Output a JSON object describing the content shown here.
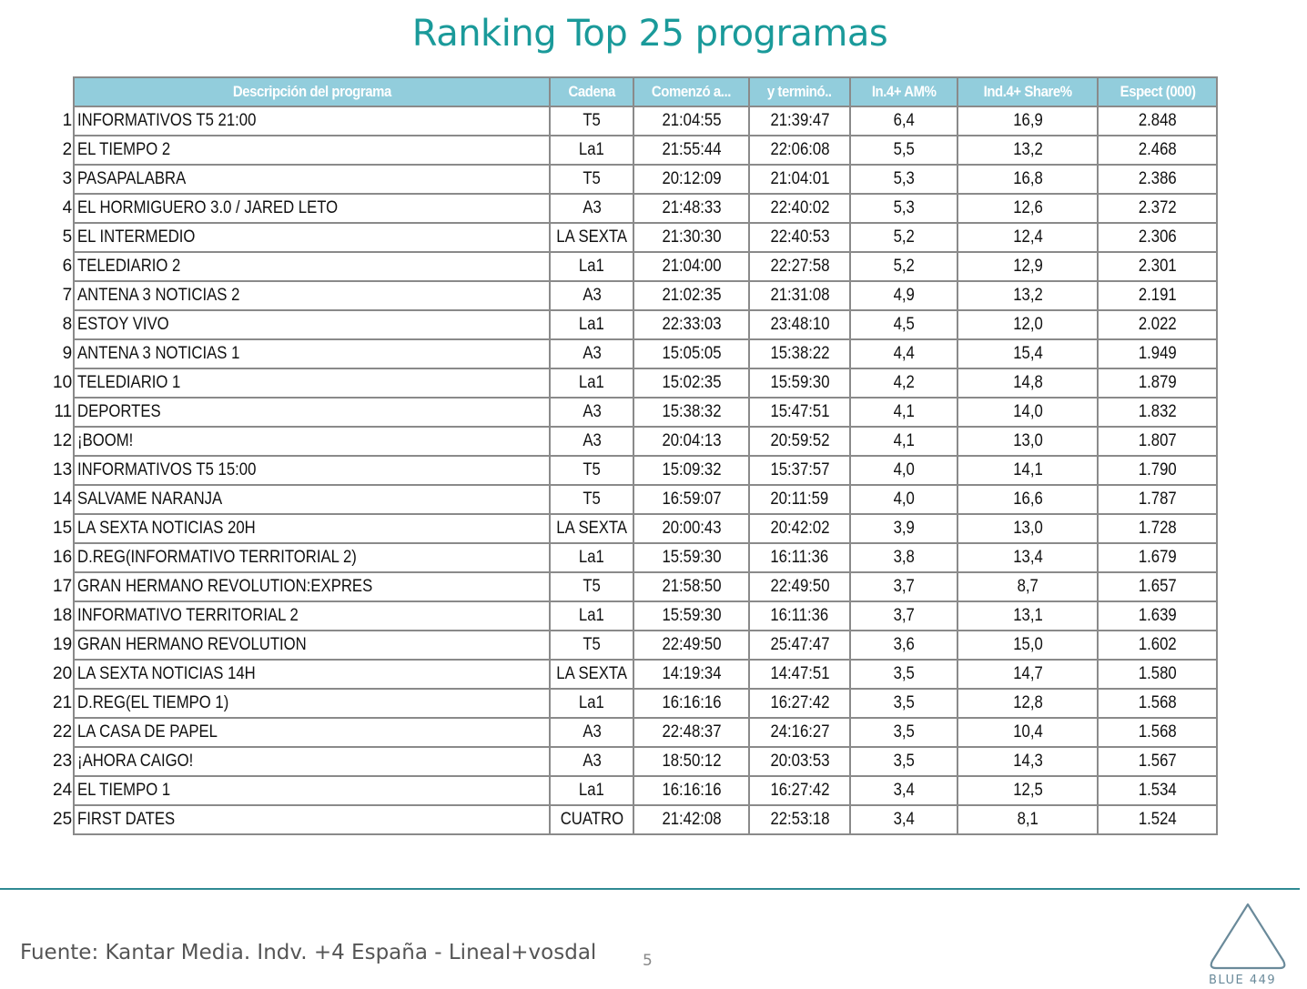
{
  "title": "Ranking Top 25 programas",
  "table": {
    "headers": [
      "Descripción del programa",
      "Cadena",
      "Comenzó a...",
      "y terminó..",
      "In.4+ AM%",
      "Ind.4+ Share%",
      "Espect (000)"
    ],
    "rows": [
      {
        "rank": "1",
        "desc": "INFORMATIVOS T5 21:00",
        "cadena": "T5",
        "start": "21:04:55",
        "end": "21:39:47",
        "am": "6,4",
        "share": "16,9",
        "espect": "2.848"
      },
      {
        "rank": "2",
        "desc": "EL TIEMPO 2",
        "cadena": "La1",
        "start": "21:55:44",
        "end": "22:06:08",
        "am": "5,5",
        "share": "13,2",
        "espect": "2.468"
      },
      {
        "rank": "3",
        "desc": "PASAPALABRA",
        "cadena": "T5",
        "start": "20:12:09",
        "end": "21:04:01",
        "am": "5,3",
        "share": "16,8",
        "espect": "2.386"
      },
      {
        "rank": "4",
        "desc": "EL HORMIGUERO 3.0 / JARED LETO",
        "cadena": "A3",
        "start": "21:48:33",
        "end": "22:40:02",
        "am": "5,3",
        "share": "12,6",
        "espect": "2.372"
      },
      {
        "rank": "5",
        "desc": "EL INTERMEDIO",
        "cadena": "LA SEXTA",
        "start": "21:30:30",
        "end": "22:40:53",
        "am": "5,2",
        "share": "12,4",
        "espect": "2.306"
      },
      {
        "rank": "6",
        "desc": "TELEDIARIO 2",
        "cadena": "La1",
        "start": "21:04:00",
        "end": "22:27:58",
        "am": "5,2",
        "share": "12,9",
        "espect": "2.301"
      },
      {
        "rank": "7",
        "desc": "ANTENA 3 NOTICIAS 2",
        "cadena": "A3",
        "start": "21:02:35",
        "end": "21:31:08",
        "am": "4,9",
        "share": "13,2",
        "espect": "2.191"
      },
      {
        "rank": "8",
        "desc": "ESTOY VIVO",
        "cadena": "La1",
        "start": "22:33:03",
        "end": "23:48:10",
        "am": "4,5",
        "share": "12,0",
        "espect": "2.022"
      },
      {
        "rank": "9",
        "desc": "ANTENA 3 NOTICIAS 1",
        "cadena": "A3",
        "start": "15:05:05",
        "end": "15:38:22",
        "am": "4,4",
        "share": "15,4",
        "espect": "1.949"
      },
      {
        "rank": "10",
        "desc": "TELEDIARIO 1",
        "cadena": "La1",
        "start": "15:02:35",
        "end": "15:59:30",
        "am": "4,2",
        "share": "14,8",
        "espect": "1.879"
      },
      {
        "rank": "11",
        "desc": "DEPORTES",
        "cadena": "A3",
        "start": "15:38:32",
        "end": "15:47:51",
        "am": "4,1",
        "share": "14,0",
        "espect": "1.832"
      },
      {
        "rank": "12",
        "desc": "¡BOOM!",
        "cadena": "A3",
        "start": "20:04:13",
        "end": "20:59:52",
        "am": "4,1",
        "share": "13,0",
        "espect": "1.807"
      },
      {
        "rank": "13",
        "desc": "INFORMATIVOS T5 15:00",
        "cadena": "T5",
        "start": "15:09:32",
        "end": "15:37:57",
        "am": "4,0",
        "share": "14,1",
        "espect": "1.790"
      },
      {
        "rank": "14",
        "desc": "SALVAME NARANJA",
        "cadena": "T5",
        "start": "16:59:07",
        "end": "20:11:59",
        "am": "4,0",
        "share": "16,6",
        "espect": "1.787"
      },
      {
        "rank": "15",
        "desc": "LA SEXTA NOTICIAS 20H",
        "cadena": "LA SEXTA",
        "start": "20:00:43",
        "end": "20:42:02",
        "am": "3,9",
        "share": "13,0",
        "espect": "1.728"
      },
      {
        "rank": "16",
        "desc": "D.REG(INFORMATIVO TERRITORIAL 2)",
        "cadena": "La1",
        "start": "15:59:30",
        "end": "16:11:36",
        "am": "3,8",
        "share": "13,4",
        "espect": "1.679"
      },
      {
        "rank": "17",
        "desc": "GRAN HERMANO REVOLUTION:EXPRES",
        "cadena": "T5",
        "start": "21:58:50",
        "end": "22:49:50",
        "am": "3,7",
        "share": "8,7",
        "espect": "1.657"
      },
      {
        "rank": "18",
        "desc": "INFORMATIVO TERRITORIAL 2",
        "cadena": "La1",
        "start": "15:59:30",
        "end": "16:11:36",
        "am": "3,7",
        "share": "13,1",
        "espect": "1.639"
      },
      {
        "rank": "19",
        "desc": "GRAN HERMANO REVOLUTION",
        "cadena": "T5",
        "start": "22:49:50",
        "end": "25:47:47",
        "am": "3,6",
        "share": "15,0",
        "espect": "1.602"
      },
      {
        "rank": "20",
        "desc": "LA SEXTA NOTICIAS 14H",
        "cadena": "LA SEXTA",
        "start": "14:19:34",
        "end": "14:47:51",
        "am": "3,5",
        "share": "14,7",
        "espect": "1.580"
      },
      {
        "rank": "21",
        "desc": "D.REG(EL TIEMPO 1)",
        "cadena": "La1",
        "start": "16:16:16",
        "end": "16:27:42",
        "am": "3,5",
        "share": "12,8",
        "espect": "1.568"
      },
      {
        "rank": "22",
        "desc": "LA CASA DE PAPEL",
        "cadena": "A3",
        "start": "22:48:37",
        "end": "24:16:27",
        "am": "3,5",
        "share": "10,4",
        "espect": "1.568"
      },
      {
        "rank": "23",
        "desc": "¡AHORA CAIGO!",
        "cadena": "A3",
        "start": "18:50:12",
        "end": "20:03:53",
        "am": "3,5",
        "share": "14,3",
        "espect": "1.567"
      },
      {
        "rank": "24",
        "desc": "EL TIEMPO 1",
        "cadena": "La1",
        "start": "16:16:16",
        "end": "16:27:42",
        "am": "3,4",
        "share": "12,5",
        "espect": "1.534"
      },
      {
        "rank": "25",
        "desc": "FIRST DATES",
        "cadena": "CUATRO",
        "start": "21:42:08",
        "end": "22:53:18",
        "am": "3,4",
        "share": "8,1",
        "espect": "1.524"
      }
    ]
  },
  "footer": {
    "source": "Fuente: Kantar Media. Indv. +4 España - Lineal+vosdal",
    "page_number": "5",
    "logo_text": "BLUE 449"
  },
  "colors": {
    "title": "#1a9a9a",
    "header_bg": "#92cddc",
    "border": "#8a8a8a",
    "footer_line": "#2f8a93"
  }
}
